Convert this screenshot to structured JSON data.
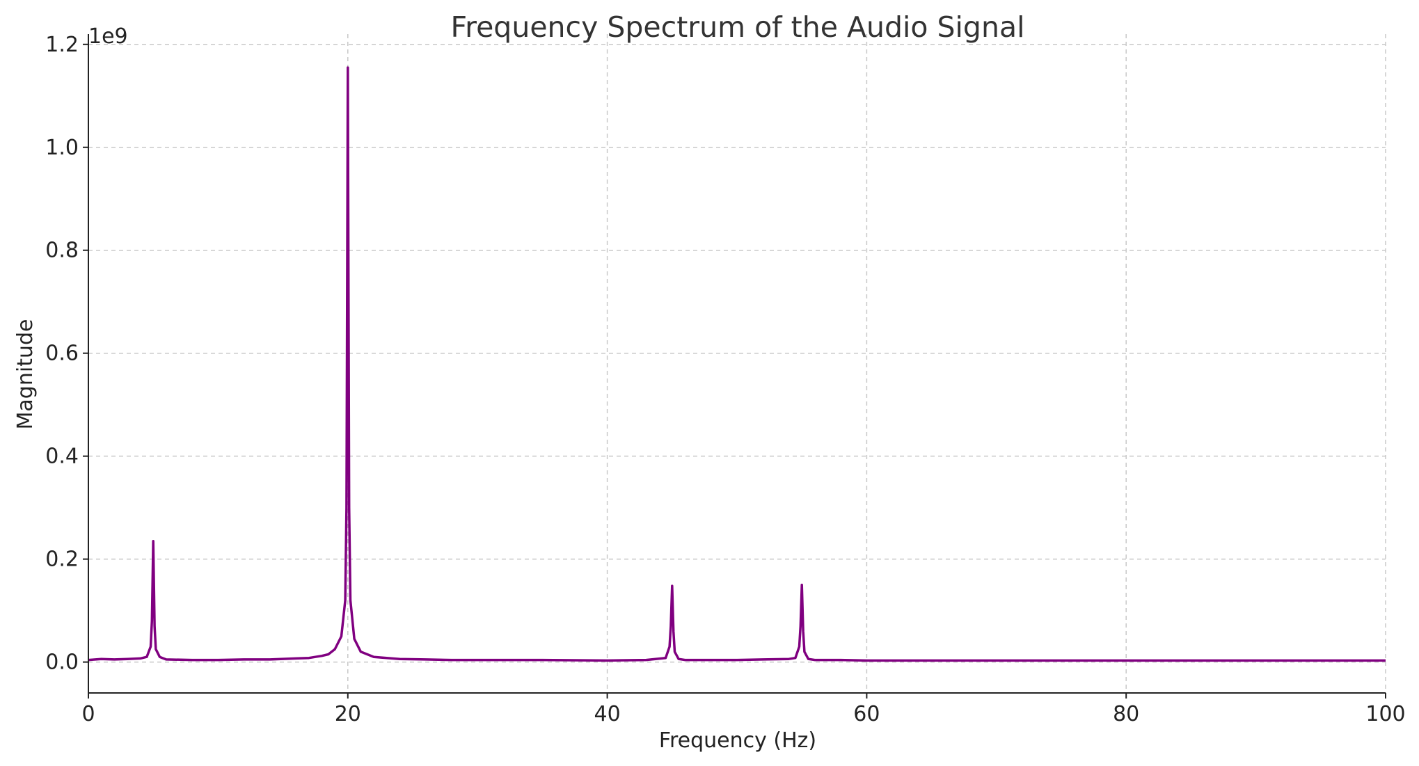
{
  "chart_data": {
    "type": "line",
    "title": "Frequency Spectrum of the Audio Signal",
    "xlabel": "Frequency (Hz)",
    "ylabel": "Magnitude",
    "y_offset_label": "1e9",
    "xlim": [
      0,
      100
    ],
    "ylim": [
      -0.06,
      1.22
    ],
    "x_ticks": [
      0,
      20,
      40,
      60,
      80,
      100
    ],
    "x_tick_labels": [
      "0",
      "20",
      "40",
      "60",
      "80",
      "100"
    ],
    "y_ticks": [
      0.0,
      0.2,
      0.4,
      0.6,
      0.8,
      1.0,
      1.2
    ],
    "y_tick_labels": [
      "0.0",
      "0.2",
      "0.4",
      "0.6",
      "0.8",
      "1.0",
      "1.2"
    ],
    "grid": true,
    "series": [
      {
        "color": "#800080",
        "x": [
          0,
          1,
          2,
          3,
          4,
          4.5,
          4.8,
          4.9,
          5.0,
          5.1,
          5.2,
          5.5,
          6,
          8,
          10,
          12,
          14,
          16,
          17,
          18,
          18.5,
          19,
          19.5,
          19.8,
          19.9,
          20.0,
          20.1,
          20.2,
          20.5,
          21,
          22,
          24,
          26,
          28,
          30,
          35,
          40,
          43,
          44.5,
          44.8,
          44.9,
          45.0,
          45.1,
          45.2,
          45.5,
          46,
          48,
          50,
          52,
          54,
          54.5,
          54.8,
          54.9,
          55.0,
          55.1,
          55.2,
          55.5,
          56,
          58,
          60,
          65,
          70,
          75,
          80,
          85,
          90,
          95,
          100
        ],
        "y": [
          0.004,
          0.006,
          0.005,
          0.006,
          0.007,
          0.01,
          0.03,
          0.08,
          0.235,
          0.07,
          0.025,
          0.01,
          0.005,
          0.004,
          0.004,
          0.005,
          0.005,
          0.007,
          0.008,
          0.012,
          0.015,
          0.025,
          0.05,
          0.12,
          0.3,
          1.155,
          0.3,
          0.12,
          0.045,
          0.02,
          0.01,
          0.006,
          0.005,
          0.004,
          0.004,
          0.004,
          0.003,
          0.004,
          0.008,
          0.03,
          0.07,
          0.148,
          0.06,
          0.02,
          0.006,
          0.004,
          0.004,
          0.004,
          0.005,
          0.006,
          0.008,
          0.03,
          0.07,
          0.15,
          0.06,
          0.02,
          0.006,
          0.004,
          0.004,
          0.003,
          0.003,
          0.003,
          0.003,
          0.003,
          0.003,
          0.003,
          0.003,
          0.003
        ]
      }
    ]
  }
}
